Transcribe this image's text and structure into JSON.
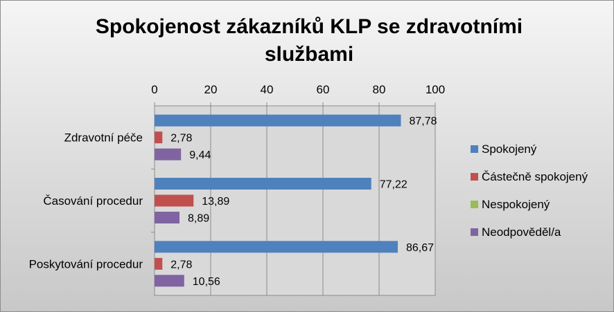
{
  "chart_data": {
    "type": "bar",
    "orientation": "horizontal",
    "title": "Spokojenost zákazníků KLP se zdravotními službami",
    "categories": [
      "Zdravotní péče",
      "Časování procedur",
      "Poskytování procedur"
    ],
    "series": [
      {
        "name": "Spokojený",
        "color": "#4f81bd",
        "values": [
          87.78,
          77.22,
          86.67
        ],
        "labels": [
          "87,78",
          "77,22",
          "86,67"
        ]
      },
      {
        "name": "Částečně spokojený",
        "color": "#c0504d",
        "values": [
          2.78,
          13.89,
          2.78
        ],
        "labels": [
          "2,78",
          "13,89",
          "2,78"
        ]
      },
      {
        "name": "Nespokojený",
        "color": "#9bbb59",
        "values": [
          0,
          0,
          0
        ],
        "labels": [
          "",
          "",
          ""
        ]
      },
      {
        "name": "Neodpověděl/a",
        "color": "#8064a2",
        "values": [
          9.44,
          8.89,
          10.56
        ],
        "labels": [
          "9,44",
          "8,89",
          "10,56"
        ]
      }
    ],
    "xlim": [
      0,
      100
    ],
    "xticks": [
      "0",
      "20",
      "40",
      "60",
      "80",
      "100"
    ],
    "axis_position": "top",
    "grid": true,
    "legend_position": "right"
  }
}
